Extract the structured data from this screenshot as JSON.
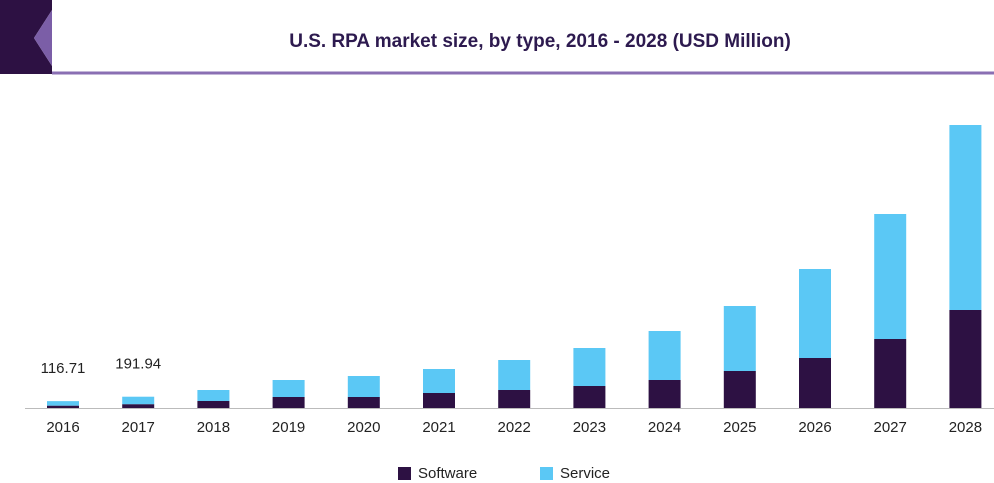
{
  "chart_data": {
    "type": "stacked_bar",
    "title": "U.S. RPA market size, by type, 2016 - 2028 (USD Million)",
    "categories": [
      "2016",
      "2017",
      "2018",
      "2019",
      "2020",
      "2021",
      "2022",
      "2023",
      "2024",
      "2025",
      "2026",
      "2027",
      "2028"
    ],
    "series": [
      {
        "name": "Software",
        "color": "#2d1143",
        "values": [
          40,
          65,
          119,
          187,
          187,
          255,
          306,
          374,
          476,
          629,
          850,
          1173,
          1666
        ]
      },
      {
        "name": "Service",
        "color": "#5bc8f5",
        "values": [
          76.71,
          126.94,
          187,
          289,
          357,
          408,
          510,
          646,
          833,
          1105,
          1513,
          2125,
          3145
        ]
      }
    ],
    "totals": [
      116.71,
      191.94,
      null,
      null,
      null,
      null,
      null,
      null,
      null,
      null,
      null,
      null,
      null
    ],
    "legend": "bottom"
  }
}
